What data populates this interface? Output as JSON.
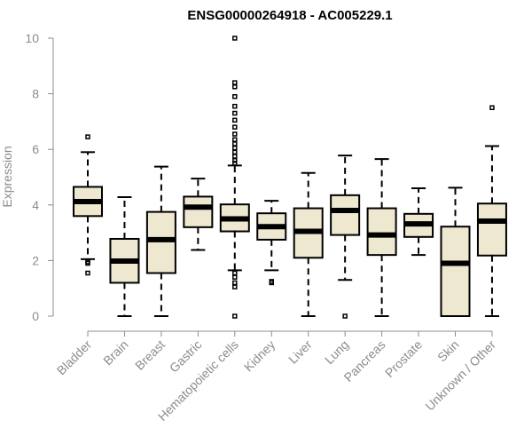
{
  "chart_data": {
    "type": "box",
    "title": "ENSG00000264918 - AC005229.1",
    "xlabel": "",
    "ylabel": "Expression",
    "ylim": [
      0,
      10
    ],
    "yticks": [
      "0",
      "2",
      "4",
      "6",
      "8",
      "10"
    ],
    "grid": false,
    "legend": "none",
    "box_fill_color": "#ede8cf",
    "categories": [
      "Bladder",
      "Brain",
      "Breast",
      "Gastric",
      "Hematopoietic cells",
      "Kidney",
      "Liver",
      "Lung",
      "Pancreas",
      "Prostate",
      "Skin",
      "Unknown / Other"
    ],
    "boxes": [
      {
        "min": 2.05,
        "q1": 3.6,
        "median": 4.12,
        "q3": 4.65,
        "max": 5.9,
        "outliers": [
          6.45,
          1.95,
          1.9,
          1.55
        ]
      },
      {
        "min": 0.0,
        "q1": 1.2,
        "median": 1.98,
        "q3": 2.78,
        "max": 4.28,
        "outliers": []
      },
      {
        "min": 0.0,
        "q1": 1.55,
        "median": 2.75,
        "q3": 3.75,
        "max": 5.38,
        "outliers": []
      },
      {
        "min": 2.38,
        "q1": 3.2,
        "median": 3.92,
        "q3": 4.3,
        "max": 4.95,
        "outliers": []
      },
      {
        "min": 1.65,
        "q1": 3.05,
        "median": 3.5,
        "q3": 4.02,
        "max": 5.42,
        "outliers": [
          10.0,
          8.4,
          8.25,
          7.9,
          7.55,
          7.3,
          7.05,
          6.8,
          6.55,
          6.35,
          6.2,
          6.05,
          5.9,
          5.75,
          5.6,
          5.5,
          1.55,
          1.4,
          1.2,
          1.05,
          0.0
        ]
      },
      {
        "min": 1.65,
        "q1": 2.75,
        "median": 3.22,
        "q3": 3.7,
        "max": 4.15,
        "outliers": [
          1.25,
          1.2
        ]
      },
      {
        "min": 0.0,
        "q1": 2.1,
        "median": 3.05,
        "q3": 3.88,
        "max": 5.15,
        "outliers": []
      },
      {
        "min": 1.3,
        "q1": 2.92,
        "median": 3.8,
        "q3": 4.35,
        "max": 5.78,
        "outliers": [
          0.0
        ]
      },
      {
        "min": 0.0,
        "q1": 2.2,
        "median": 2.92,
        "q3": 3.88,
        "max": 5.65,
        "outliers": []
      },
      {
        "min": 2.2,
        "q1": 2.85,
        "median": 3.32,
        "q3": 3.68,
        "max": 4.6,
        "outliers": []
      },
      {
        "min": 0.0,
        "q1": 0.0,
        "median": 1.9,
        "q3": 3.22,
        "max": 4.62,
        "outliers": []
      },
      {
        "min": 0.0,
        "q1": 2.18,
        "median": 3.42,
        "q3": 4.05,
        "max": 6.12,
        "outliers": [
          7.5
        ]
      }
    ]
  }
}
